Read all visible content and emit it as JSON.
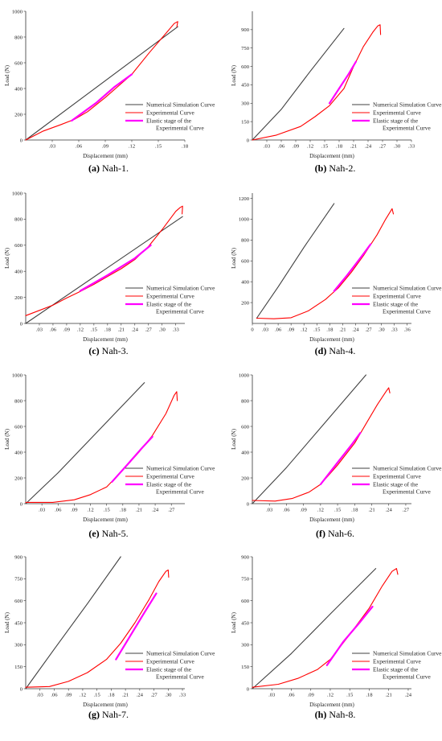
{
  "colors": {
    "numerical": "#404040",
    "experimental": "#ff0000",
    "elastic": "#ff00ff",
    "axis": "#333333"
  },
  "legend_labels": {
    "numerical": "Numerical Simulation Curve",
    "experimental": "Experimental Curve",
    "elastic_line1": "Elastic stage of the",
    "elastic_line2": "Experimental Curve"
  },
  "axis_labels": {
    "xlabel": "Displacement (mm)",
    "ylabel": "Load (N)"
  },
  "chart_data": [
    {
      "type": "line",
      "caption_bold": "(a)",
      "caption_text": " Nah-1.",
      "xlim": [
        0,
        0.18
      ],
      "xticks": [
        0.03,
        0.06,
        0.09,
        0.12,
        0.15,
        0.18
      ],
      "x_decimals": 2,
      "ylim": [
        0,
        1000
      ],
      "yticks": [
        0,
        200,
        400,
        600,
        800,
        1000
      ],
      "series": [
        {
          "name": "Numerical Simulation Curve",
          "role": "numerical",
          "x": [
            0,
            0.172
          ],
          "y": [
            0,
            880
          ]
        },
        {
          "name": "Experimental Curve",
          "role": "experimental",
          "x": [
            0,
            0.02,
            0.04,
            0.055,
            0.07,
            0.09,
            0.11,
            0.12,
            0.14,
            0.16,
            0.168,
            0.172,
            0.171
          ],
          "y": [
            0,
            70,
            120,
            160,
            220,
            330,
            450,
            510,
            680,
            840,
            905,
            920,
            880
          ]
        },
        {
          "name": "Elastic stage of the Experimental Curve",
          "role": "elastic",
          "x": [
            0.052,
            0.08,
            0.1,
            0.12
          ],
          "y": [
            150,
            290,
            410,
            510
          ]
        }
      ]
    },
    {
      "type": "line",
      "caption_bold": "(b)",
      "caption_text": " Nah-2.",
      "xlim": [
        0,
        0.33
      ],
      "xticks": [
        0.03,
        0.06,
        0.09,
        0.12,
        0.15,
        0.18,
        0.21,
        0.24,
        0.27,
        0.3,
        0.33
      ],
      "x_decimals": 2,
      "ylim": [
        0,
        1050
      ],
      "yticks": [
        0,
        150,
        300,
        450,
        600,
        750,
        900
      ],
      "series": [
        {
          "name": "Numerical Simulation Curve",
          "role": "numerical",
          "x": [
            0,
            0.06,
            0.12,
            0.19
          ],
          "y": [
            0,
            250,
            560,
            910
          ]
        },
        {
          "name": "Experimental Curve",
          "role": "experimental",
          "x": [
            0,
            0.05,
            0.1,
            0.13,
            0.16,
            0.19,
            0.21,
            0.23,
            0.25,
            0.26,
            0.265,
            0.266
          ],
          "y": [
            0,
            40,
            110,
            190,
            280,
            420,
            600,
            760,
            880,
            930,
            940,
            860
          ]
        },
        {
          "name": "Elastic stage of the Experimental Curve",
          "role": "elastic",
          "x": [
            0.16,
            0.18,
            0.2,
            0.215
          ],
          "y": [
            300,
            420,
            540,
            640
          ]
        }
      ]
    },
    {
      "type": "line",
      "caption_bold": "(c)",
      "caption_text": " Nah-3.",
      "xlim": [
        0,
        0.35
      ],
      "xticks": [
        0.03,
        0.06,
        0.09,
        0.12,
        0.15,
        0.18,
        0.21,
        0.24,
        0.27,
        0.3,
        0.33
      ],
      "x_decimals": 2,
      "ylim": [
        0,
        1000
      ],
      "yticks": [
        0,
        200,
        400,
        600,
        800,
        1000
      ],
      "series": [
        {
          "name": "Numerical Simulation Curve",
          "role": "numerical",
          "x": [
            0,
            0.345
          ],
          "y": [
            0,
            820
          ]
        },
        {
          "name": "Experimental Curve",
          "role": "experimental",
          "x": [
            0,
            0.03,
            0.06,
            0.09,
            0.12,
            0.15,
            0.18,
            0.21,
            0.24,
            0.27,
            0.3,
            0.33,
            0.34,
            0.345,
            0.344
          ],
          "y": [
            60,
            100,
            140,
            195,
            245,
            300,
            360,
            420,
            490,
            590,
            720,
            860,
            890,
            900,
            840
          ]
        },
        {
          "name": "Elastic stage of the Experimental Curve",
          "role": "elastic",
          "x": [
            0.12,
            0.18,
            0.24,
            0.275
          ],
          "y": [
            250,
            370,
            500,
            600
          ]
        }
      ]
    },
    {
      "type": "line",
      "caption_bold": "(d)",
      "caption_text": " Nah-4.",
      "xlim": [
        0,
        0.37
      ],
      "xticks": [
        0,
        0.03,
        0.06,
        0.09,
        0.12,
        0.15,
        0.18,
        0.21,
        0.24,
        0.27,
        0.3,
        0.33,
        0.36
      ],
      "x_decimals": 2,
      "ylim": [
        0,
        1250
      ],
      "yticks": [
        200,
        400,
        600,
        800,
        1000,
        1200
      ],
      "series": [
        {
          "name": "Numerical Simulation Curve",
          "role": "numerical",
          "x": [
            0.01,
            0.06,
            0.12,
            0.19
          ],
          "y": [
            50,
            350,
            730,
            1150
          ]
        },
        {
          "name": "Experimental Curve",
          "role": "experimental",
          "x": [
            0.01,
            0.05,
            0.09,
            0.13,
            0.17,
            0.2,
            0.23,
            0.26,
            0.29,
            0.31,
            0.325,
            0.328
          ],
          "y": [
            50,
            45,
            55,
            120,
            230,
            340,
            490,
            660,
            850,
            1000,
            1100,
            1050
          ]
        },
        {
          "name": "Elastic stage of the Experimental Curve",
          "role": "elastic",
          "x": [
            0.19,
            0.22,
            0.25,
            0.275
          ],
          "y": [
            310,
            460,
            620,
            760
          ]
        }
      ]
    },
    {
      "type": "line",
      "caption_bold": "(e)",
      "caption_text": " Nah-5.",
      "xlim": [
        0,
        0.295
      ],
      "xticks": [
        0.03,
        0.06,
        0.09,
        0.12,
        0.15,
        0.18,
        0.21,
        0.24,
        0.27
      ],
      "x_decimals": 2,
      "ylim": [
        0,
        1000
      ],
      "yticks": [
        0,
        200,
        400,
        600,
        800,
        1000
      ],
      "series": [
        {
          "name": "Numerical Simulation Curve",
          "role": "numerical",
          "x": [
            0,
            0.06,
            0.14,
            0.22
          ],
          "y": [
            0,
            240,
            590,
            940
          ]
        },
        {
          "name": "Experimental Curve",
          "role": "experimental",
          "x": [
            0,
            0.05,
            0.09,
            0.12,
            0.15,
            0.18,
            0.21,
            0.235,
            0.26,
            0.275,
            0.28,
            0.281
          ],
          "y": [
            10,
            10,
            30,
            70,
            130,
            260,
            400,
            530,
            700,
            840,
            870,
            800
          ]
        },
        {
          "name": "Elastic stage of the Experimental Curve",
          "role": "elastic",
          "x": [
            0.16,
            0.19,
            0.215,
            0.235
          ],
          "y": [
            170,
            310,
            430,
            520
          ]
        }
      ]
    },
    {
      "type": "line",
      "caption_bold": "(f)",
      "caption_text": " Nah-6.",
      "xlim": [
        0,
        0.28
      ],
      "xticks": [
        0.03,
        0.06,
        0.09,
        0.12,
        0.15,
        0.18,
        0.21,
        0.24,
        0.27
      ],
      "x_decimals": 2,
      "ylim": [
        0,
        1000
      ],
      "yticks": [
        0,
        200,
        400,
        600,
        800,
        1000
      ],
      "series": [
        {
          "name": "Numerical Simulation Curve",
          "role": "numerical",
          "x": [
            0,
            0.06,
            0.13,
            0.2
          ],
          "y": [
            0,
            280,
            640,
            1000
          ]
        },
        {
          "name": "Experimental Curve",
          "role": "experimental",
          "x": [
            0,
            0.04,
            0.07,
            0.1,
            0.12,
            0.15,
            0.18,
            0.2,
            0.22,
            0.235,
            0.24,
            0.242
          ],
          "y": [
            25,
            20,
            40,
            90,
            150,
            300,
            470,
            620,
            770,
            870,
            900,
            860
          ]
        },
        {
          "name": "Elastic stage of the Experimental Curve",
          "role": "elastic",
          "x": [
            0.12,
            0.15,
            0.175,
            0.19
          ],
          "y": [
            150,
            320,
            460,
            550
          ]
        }
      ]
    },
    {
      "type": "line",
      "caption_bold": "(g)",
      "caption_text": " Nah-7.",
      "xlim": [
        0,
        0.335
      ],
      "xticks": [
        0.03,
        0.06,
        0.09,
        0.12,
        0.15,
        0.18,
        0.21,
        0.24,
        0.27,
        0.3,
        0.33
      ],
      "x_decimals": 2,
      "ylim": [
        0,
        900
      ],
      "yticks": [
        0,
        150,
        300,
        450,
        600,
        750,
        900
      ],
      "series": [
        {
          "name": "Numerical Simulation Curve",
          "role": "numerical",
          "x": [
            0,
            0.06,
            0.13,
            0.2
          ],
          "y": [
            0,
            270,
            580,
            900
          ]
        },
        {
          "name": "Experimental Curve",
          "role": "experimental",
          "x": [
            0,
            0.05,
            0.09,
            0.13,
            0.17,
            0.2,
            0.23,
            0.26,
            0.28,
            0.295,
            0.3,
            0.301
          ],
          "y": [
            10,
            15,
            50,
            110,
            200,
            310,
            450,
            610,
            730,
            800,
            810,
            760
          ]
        },
        {
          "name": "Elastic stage of the Experimental Curve",
          "role": "elastic",
          "x": [
            0.19,
            0.22,
            0.25,
            0.275
          ],
          "y": [
            200,
            360,
            520,
            650
          ]
        }
      ]
    },
    {
      "type": "line",
      "caption_bold": "(h)",
      "caption_text": " Nah-8.",
      "xlim": [
        0,
        0.245
      ],
      "xticks": [
        0.03,
        0.06,
        0.09,
        0.12,
        0.15,
        0.18,
        0.21,
        0.24
      ],
      "x_decimals": 2,
      "ylim": [
        0,
        900
      ],
      "yticks": [
        0,
        150,
        300,
        450,
        600,
        750,
        900
      ],
      "series": [
        {
          "name": "Numerical Simulation Curve",
          "role": "numerical",
          "x": [
            0,
            0.06,
            0.12,
            0.19
          ],
          "y": [
            0,
            240,
            510,
            820
          ]
        },
        {
          "name": "Experimental Curve",
          "role": "experimental",
          "x": [
            0,
            0.04,
            0.07,
            0.1,
            0.12,
            0.15,
            0.18,
            0.2,
            0.215,
            0.222,
            0.224
          ],
          "y": [
            10,
            30,
            70,
            130,
            200,
            370,
            550,
            700,
            800,
            820,
            780
          ]
        },
        {
          "name": "Elastic stage of the Experimental Curve",
          "role": "elastic",
          "x": [
            0.115,
            0.14,
            0.165,
            0.185
          ],
          "y": [
            160,
            320,
            450,
            560
          ]
        }
      ]
    }
  ]
}
